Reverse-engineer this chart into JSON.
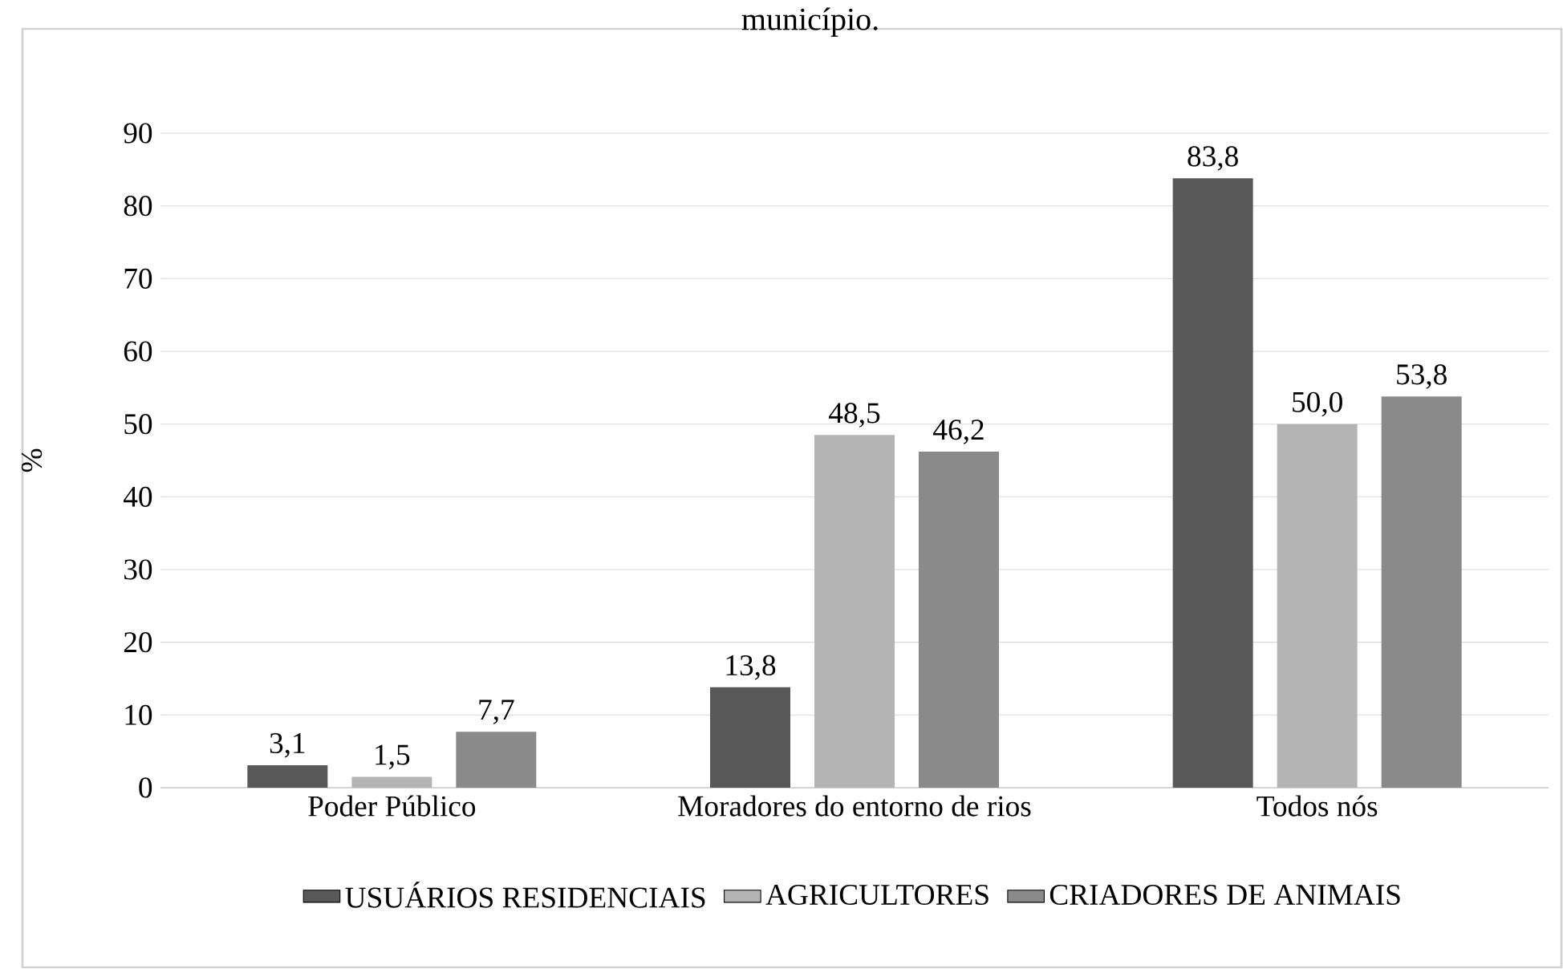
{
  "chart_data": {
    "type": "bar",
    "title": "município.",
    "ylabel": "%",
    "categories": [
      "Poder Público",
      "Moradores do entorno de rios",
      "Todos nós"
    ],
    "series": [
      {
        "name": "USUÁRIOS RESIDENCIAIS",
        "color": "#595959",
        "values": [
          3.1,
          13.8,
          83.8
        ],
        "value_labels": [
          "3,1",
          "13,8",
          "83,8"
        ]
      },
      {
        "name": "AGRICULTORES",
        "color": "#b4b4b4",
        "values": [
          1.5,
          48.5,
          50.0
        ],
        "value_labels": [
          "1,5",
          "48,5",
          "50,0"
        ]
      },
      {
        "name": "CRIADORES DE ANIMAIS",
        "color": "#8a8a8a",
        "values": [
          7.7,
          46.2,
          53.8
        ],
        "value_labels": [
          "7,7",
          "46,2",
          "53,8"
        ]
      }
    ],
    "ylim": [
      0,
      90
    ],
    "yticks": [
      0,
      10,
      20,
      30,
      40,
      50,
      60,
      70,
      80,
      90
    ],
    "grid": "y",
    "legend": "bottom"
  }
}
